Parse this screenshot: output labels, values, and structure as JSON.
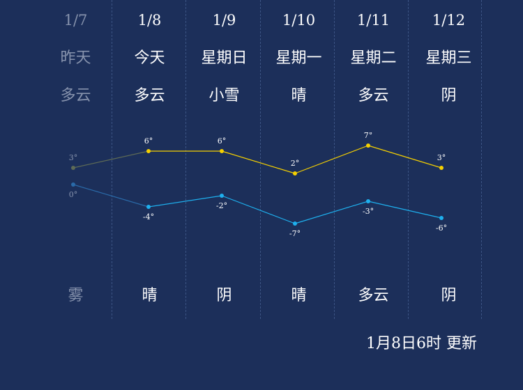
{
  "days": [
    {
      "date": "1/7",
      "weekday": "昨天",
      "day_weather": "多云",
      "night_weather": "雾",
      "high": "3°",
      "low": "0°",
      "past": true
    },
    {
      "date": "1/8",
      "weekday": "今天",
      "day_weather": "多云",
      "night_weather": "晴",
      "high": "6°",
      "low": "-4°",
      "past": false
    },
    {
      "date": "1/9",
      "weekday": "星期日",
      "day_weather": "小雪",
      "night_weather": "阴",
      "high": "6°",
      "low": "-2°",
      "past": false
    },
    {
      "date": "1/10",
      "weekday": "星期一",
      "day_weather": "晴",
      "night_weather": "晴",
      "high": "2°",
      "low": "-7°",
      "past": false
    },
    {
      "date": "1/11",
      "weekday": "星期二",
      "day_weather": "多云",
      "night_weather": "多云",
      "high": "7°",
      "low": "-3°",
      "past": false
    },
    {
      "date": "1/12",
      "weekday": "星期三",
      "day_weather": "阴",
      "night_weather": "阴",
      "high": "3°",
      "low": "-6°",
      "past": false
    }
  ],
  "chart_data": {
    "type": "line",
    "categories": [
      "1/7",
      "1/8",
      "1/9",
      "1/10",
      "1/11",
      "1/12"
    ],
    "series": [
      {
        "values": [
          3,
          6,
          6,
          2,
          7,
          3
        ],
        "color": "#f5d000"
      },
      {
        "values": [
          0,
          -4,
          -2,
          -7,
          -3,
          -6
        ],
        "color": "#1eb0ee"
      }
    ],
    "past_color": "#5e6b56",
    "past_low_color": "#2a6aa8"
  },
  "update_text": "1月8日6时 更新"
}
